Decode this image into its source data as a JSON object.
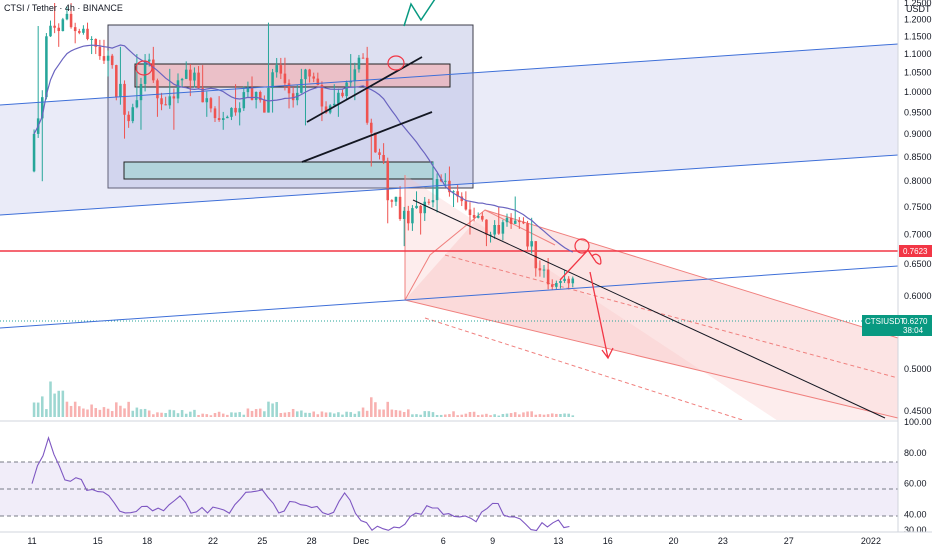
{
  "header": {
    "symbol_label": "CTSI / Tether",
    "exchange": "BINANCE"
  },
  "currency_label": "USDT",
  "chart_data": [
    {
      "type": "candlestick",
      "name": "price",
      "y_scale": "log",
      "ylim": [
        0.44,
        1.26
      ],
      "price_ticks": [
        "1.2500",
        "1.2000",
        "1.1500",
        "1.1000",
        "1.0500",
        "1.0000",
        "0.9500",
        "0.9000",
        "0.8500",
        "0.8000",
        "0.7500",
        "0.7000",
        "0.6500",
        "0.6000",
        "0.5500",
        "0.5000",
        "0.4500"
      ],
      "date_ticks": [
        "11",
        "15",
        "18",
        "22",
        "25",
        "28",
        "Dec",
        "6",
        "9",
        "13",
        "16",
        "20",
        "23",
        "27",
        "2022"
      ],
      "date_tick_day_offsets": [
        0,
        4,
        7,
        11,
        14,
        17,
        20,
        25,
        28,
        32,
        35,
        39,
        42,
        46,
        51
      ],
      "marked_levels": [
        {
          "price": "0.7623",
          "color": "#f23645"
        },
        {
          "price": "0.6270",
          "color": "#089981",
          "label": "CTSIUSDT",
          "countdown": "38:04"
        }
      ],
      "ohlc_daily_approx": [
        {
          "day": 0,
          "o": 0.82,
          "h": 1.18,
          "l": 0.8,
          "c": 1.15
        },
        {
          "day": 1,
          "o": 1.15,
          "h": 1.25,
          "l": 1.12,
          "c": 1.2
        },
        {
          "day": 2,
          "o": 1.2,
          "h": 1.25,
          "l": 1.13,
          "c": 1.16
        },
        {
          "day": 3,
          "o": 1.16,
          "h": 1.19,
          "l": 1.1,
          "c": 1.12
        },
        {
          "day": 4,
          "o": 1.12,
          "h": 1.14,
          "l": 1.04,
          "c": 1.07
        },
        {
          "day": 5,
          "o": 1.07,
          "h": 1.12,
          "l": 0.89,
          "c": 0.93
        },
        {
          "day": 6,
          "o": 0.93,
          "h": 1.1,
          "l": 0.91,
          "c": 1.08
        },
        {
          "day": 7,
          "o": 1.08,
          "h": 1.12,
          "l": 0.94,
          "c": 0.97
        },
        {
          "day": 8,
          "o": 0.97,
          "h": 1.06,
          "l": 0.91,
          "c": 1.03
        },
        {
          "day": 9,
          "o": 1.03,
          "h": 1.08,
          "l": 0.99,
          "c": 1.05
        },
        {
          "day": 10,
          "o": 1.05,
          "h": 1.07,
          "l": 0.94,
          "c": 0.96
        },
        {
          "day": 11,
          "o": 0.96,
          "h": 0.99,
          "l": 0.91,
          "c": 0.94
        },
        {
          "day": 12,
          "o": 0.94,
          "h": 1.02,
          "l": 0.92,
          "c": 1.0
        },
        {
          "day": 13,
          "o": 1.0,
          "h": 1.04,
          "l": 0.96,
          "c": 0.98
        },
        {
          "day": 14,
          "o": 0.98,
          "h": 1.19,
          "l": 0.95,
          "c": 1.07
        },
        {
          "day": 15,
          "o": 1.07,
          "h": 1.09,
          "l": 0.96,
          "c": 0.98
        },
        {
          "day": 16,
          "o": 0.98,
          "h": 1.06,
          "l": 0.92,
          "c": 1.04
        },
        {
          "day": 17,
          "o": 1.04,
          "h": 1.05,
          "l": 0.93,
          "c": 0.95
        },
        {
          "day": 18,
          "o": 0.95,
          "h": 1.02,
          "l": 0.94,
          "c": 0.99
        },
        {
          "day": 19,
          "o": 0.99,
          "h": 1.1,
          "l": 0.98,
          "c": 1.09
        },
        {
          "day": 20,
          "o": 1.09,
          "h": 1.12,
          "l": 0.83,
          "c": 0.86
        },
        {
          "day": 21,
          "o": 0.86,
          "h": 0.88,
          "l": 0.72,
          "c": 0.76
        },
        {
          "day": 22,
          "o": 0.76,
          "h": 0.79,
          "l": 0.68,
          "c": 0.72
        },
        {
          "day": 23,
          "o": 0.72,
          "h": 0.78,
          "l": 0.7,
          "c": 0.76
        },
        {
          "day": 24,
          "o": 0.76,
          "h": 0.84,
          "l": 0.74,
          "c": 0.8
        },
        {
          "day": 25,
          "o": 0.8,
          "h": 0.83,
          "l": 0.75,
          "c": 0.77
        },
        {
          "day": 26,
          "o": 0.77,
          "h": 0.78,
          "l": 0.7,
          "c": 0.73
        },
        {
          "day": 27,
          "o": 0.73,
          "h": 0.74,
          "l": 0.68,
          "c": 0.7
        },
        {
          "day": 28,
          "o": 0.7,
          "h": 0.75,
          "l": 0.69,
          "c": 0.73
        },
        {
          "day": 29,
          "o": 0.73,
          "h": 0.77,
          "l": 0.71,
          "c": 0.72
        },
        {
          "day": 30,
          "o": 0.72,
          "h": 0.73,
          "l": 0.63,
          "c": 0.64
        },
        {
          "day": 31,
          "o": 0.64,
          "h": 0.66,
          "l": 0.61,
          "c": 0.62
        },
        {
          "day": 32,
          "o": 0.62,
          "h": 0.64,
          "l": 0.61,
          "c": 0.627
        }
      ]
    },
    {
      "type": "line",
      "name": "rsi",
      "ylim": [
        30,
        100
      ],
      "ticks": [
        "100.00",
        "80.00",
        "60.00",
        "40.00",
        "30.00"
      ],
      "bands": [
        70,
        50,
        30
      ],
      "values_approx": [
        62,
        88,
        64,
        60,
        56,
        46,
        40,
        45,
        41,
        51,
        40,
        45,
        43,
        56,
        58,
        42,
        50,
        47,
        40,
        52,
        36,
        30,
        32,
        38,
        44,
        41,
        37,
        36,
        46,
        41,
        31,
        33,
        34
      ]
    },
    {
      "type": "bar",
      "name": "volume",
      "values_approx": [
        30,
        90,
        40,
        20,
        15,
        25,
        18,
        10,
        12,
        12,
        8,
        9,
        10,
        14,
        22,
        12,
        10,
        9,
        9,
        12,
        28,
        22,
        12,
        10,
        9,
        8,
        10,
        7,
        6,
        7,
        10,
        6,
        5
      ]
    }
  ],
  "colors": {
    "up": "#26a69a",
    "down": "#ef5350",
    "ma": "#6a64c0",
    "trend": "#3e6fd8",
    "rsi": "#7e57c2"
  }
}
